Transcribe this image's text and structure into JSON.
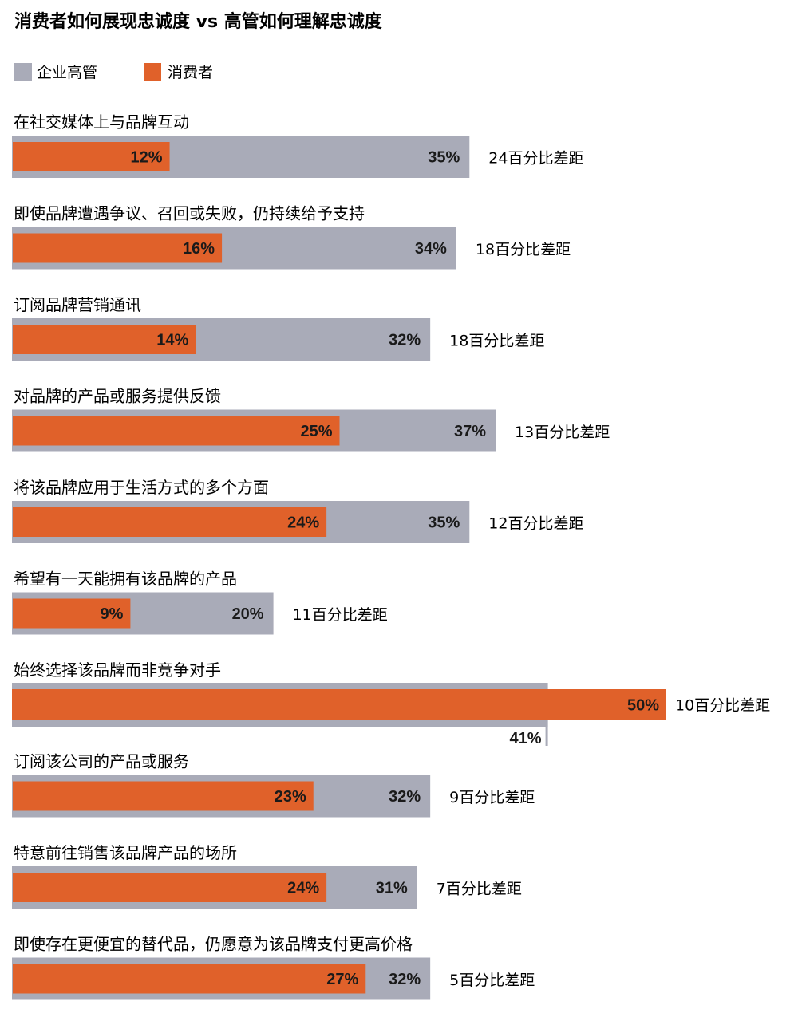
{
  "chart_data": {
    "type": "bar",
    "title": "消费者如何展现忠诚度 vs 高管如何理解忠诚度",
    "legend": {
      "position": "top-left"
    },
    "series": [
      {
        "name": "企业高管",
        "color": "#a9abb8",
        "values": [
          35,
          34,
          32,
          37,
          35,
          20,
          41,
          32,
          31,
          32
        ]
      },
      {
        "name": "消费者",
        "color": "#e0612a",
        "values": [
          12,
          16,
          14,
          25,
          24,
          9,
          50,
          23,
          24,
          27
        ]
      }
    ],
    "categories": [
      "在社交媒体上与品牌互动",
      "即使品牌遭遇争议、召回或失败，仍持续给予支持",
      "订阅品牌营销通讯",
      "对品牌的产品或服务提供反馈",
      "将该品牌应用于生活方式的多个方面",
      "希望有一天能拥有该品牌的产品",
      "始终选择该品牌而非竞争对手",
      "订阅该公司的产品或服务",
      "特意前往销售该品牌产品的场所",
      "即使存在更便宜的替代品，仍愿意为该品牌支付更高价格"
    ],
    "value_labels": {
      "executives": [
        "35%",
        "34%",
        "32%",
        "37%",
        "35%",
        "20%",
        "41%",
        "32%",
        "31%",
        "32%"
      ],
      "consumers": [
        "12%",
        "16%",
        "14%",
        "25%",
        "24%",
        "9%",
        "50%",
        "23%",
        "24%",
        "27%"
      ]
    },
    "gap_labels": [
      "24百分比差距",
      "18百分比差距",
      "18百分比差距",
      "13百分比差距",
      "12百分比差距",
      "11百分比差距",
      "10百分比差距",
      "9百分比差距",
      "7百分比差距",
      "5百分比差距"
    ],
    "xlim": [
      0,
      50
    ]
  }
}
